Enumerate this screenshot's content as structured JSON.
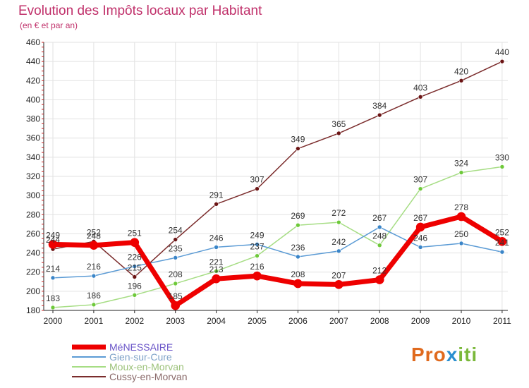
{
  "chart_data": {
    "type": "line",
    "title": "Evolution des Impôts locaux par Habitant",
    "subtitle": "(en € et par an)",
    "categories": [
      "2000",
      "2001",
      "2002",
      "2003",
      "2004",
      "2005",
      "2006",
      "2007",
      "2008",
      "2009",
      "2010",
      "2011"
    ],
    "ylim": [
      180,
      460
    ],
    "yticks": [
      180,
      200,
      220,
      240,
      260,
      280,
      300,
      320,
      340,
      360,
      380,
      400,
      420,
      440,
      460
    ],
    "series": [
      {
        "name": "MéNESSAIRE",
        "color": "#ee0000",
        "marker": "#ee0000",
        "width": 7,
        "legend_color": "#6a55c8",
        "values": [
          249,
          248,
          251,
          185,
          213,
          216,
          208,
          207,
          212,
          267,
          278,
          252
        ]
      },
      {
        "name": "Gien-sur-Cure",
        "color": "#5b9bd5",
        "marker": "#3a85c8",
        "width": 1.5,
        "legend_color": "#7fa3c8",
        "values": [
          214,
          216,
          226,
          235,
          246,
          249,
          236,
          242,
          267,
          246,
          250,
          241
        ]
      },
      {
        "name": "Moux-en-Morvan",
        "color": "#a6dd84",
        "marker": "#6ec93a",
        "width": 1.5,
        "legend_color": "#9cc27a",
        "values": [
          183,
          186,
          196,
          208,
          221,
          237,
          269,
          272,
          248,
          307,
          324,
          330
        ]
      },
      {
        "name": "Cussy-en-Morvan",
        "color": "#7b2c2c",
        "marker": "#6b1414",
        "width": 1.5,
        "legend_color": "#8a6a6a",
        "values": [
          244,
          252,
          215,
          254,
          291,
          307,
          349,
          365,
          384,
          403,
          420,
          440
        ]
      }
    ],
    "logo_text": {
      "a": "Pro",
      "b": "x",
      "c": "iti"
    }
  }
}
